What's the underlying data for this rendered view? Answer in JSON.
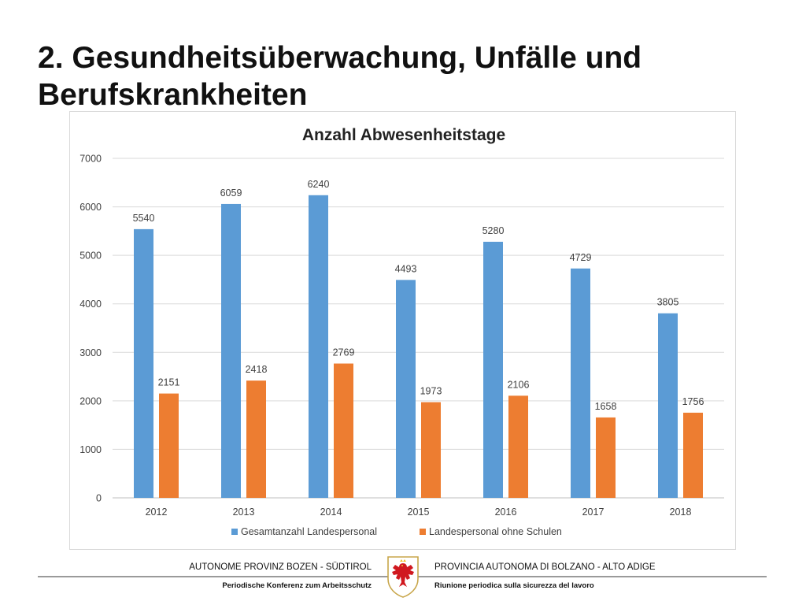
{
  "slide": {
    "title": "2. Gesundheitsüberwachung, Unfälle und Berufskrankheiten"
  },
  "footer": {
    "left_top": "AUTONOME PROVINZ BOZEN - SÜDTIROL",
    "left_bottom": "Periodische Konferenz zum Arbeitsschutz",
    "right_top": "PROVINCIA AUTONOMA DI BOLZANO - ALTO ADIGE",
    "right_bottom": "Riunione periodica sulla sicurezza del lavoro",
    "logo_icon": "eagle-coat-of-arms-icon"
  },
  "chart_data": {
    "type": "bar",
    "title": "Anzahl Abwesenheitstage",
    "categories": [
      "2012",
      "2013",
      "2014",
      "2015",
      "2016",
      "2017",
      "2018"
    ],
    "series": [
      {
        "name": "Gesamtanzahl Landespersonal",
        "color": "#5b9bd5",
        "values": [
          5540,
          6059,
          6240,
          4493,
          5280,
          4729,
          3805
        ]
      },
      {
        "name": "Landespersonal ohne Schulen",
        "color": "#ed7d31",
        "values": [
          2151,
          2418,
          2769,
          1973,
          2106,
          1658,
          1756
        ]
      }
    ],
    "ylim": [
      0,
      7000
    ],
    "yticks": [
      "0",
      "1000",
      "2000",
      "3000",
      "4000",
      "5000",
      "6000",
      "7000"
    ],
    "grid": true,
    "legend": "bottom",
    "data_labels": true
  }
}
